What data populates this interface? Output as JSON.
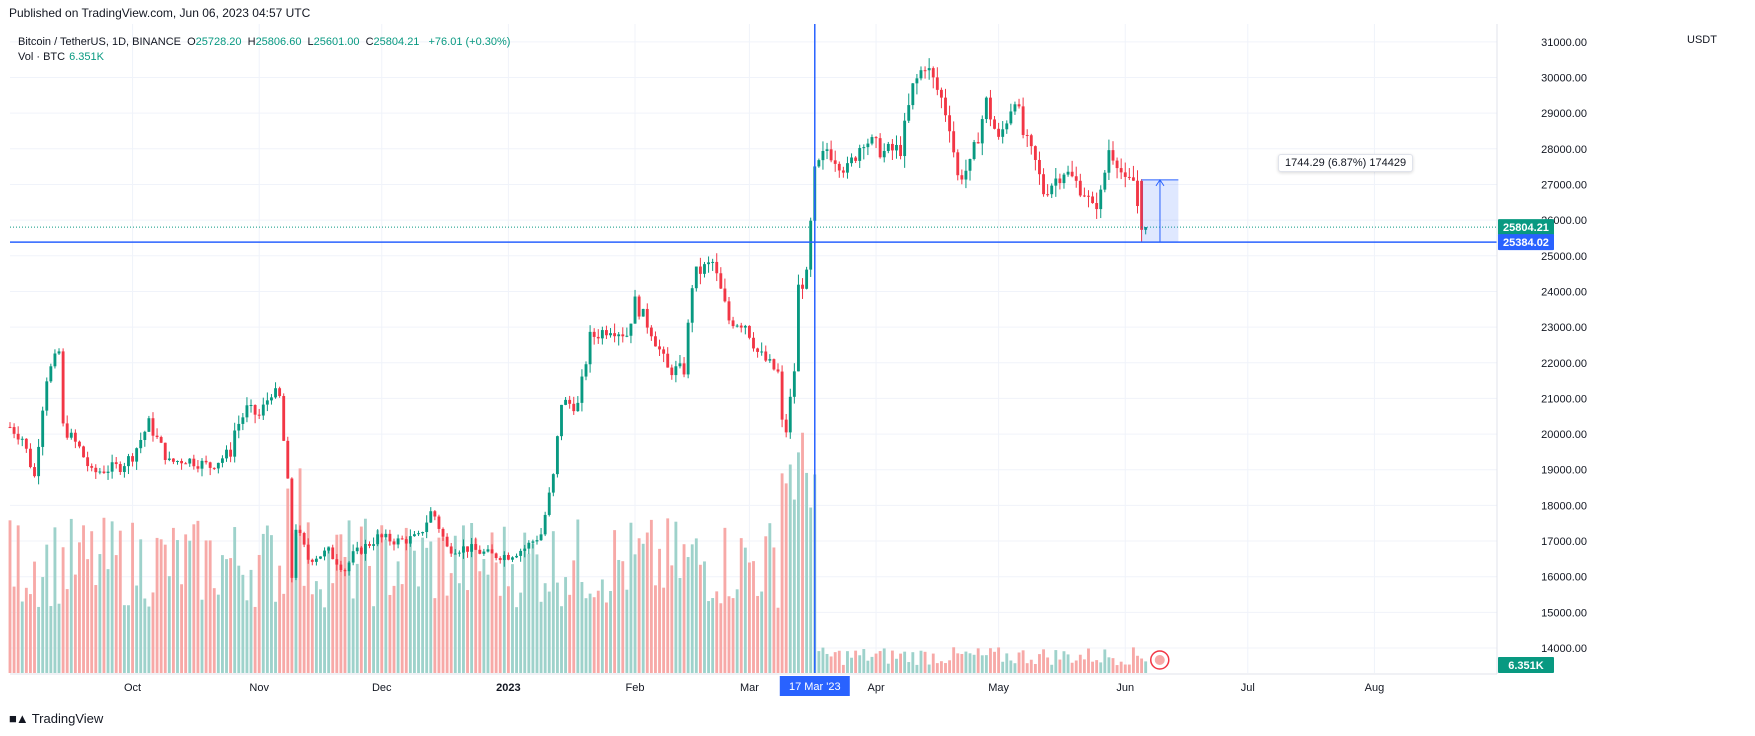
{
  "header": {
    "published": "Published on TradingView.com, Jun 06, 2023 04:57 UTC"
  },
  "legend": {
    "symbol": "Bitcoin / TetherUS, 1D, BINANCE",
    "open_label": "O",
    "open": "25728.20",
    "high_label": "H",
    "high": "25806.60",
    "low_label": "L",
    "low": "25601.00",
    "close_label": "C",
    "close": "25804.21",
    "change": "+76.01 (+0.30%)",
    "volume_label": "Vol · BTC",
    "volume": "6.351K"
  },
  "price_scale": {
    "currency": "USDT"
  },
  "markers": {
    "last_price": "25804.21",
    "crosshair_price": "25384.02",
    "crosshair_date": "17 Mar '23",
    "volume_badge": "6.351K"
  },
  "measure_tooltip": "1744.29 (6.87%) 174429",
  "footer": {
    "brand": "TradingView"
  },
  "colors": {
    "up": "#089981",
    "down": "#F23645",
    "up_vol": "#9ED2CB",
    "down_vol": "#F7A9A7",
    "crosshair": "#2962FF"
  },
  "chart_data": {
    "type": "candlestick",
    "title": "Bitcoin / TetherUS, 1D, BINANCE",
    "ylabel": "USDT",
    "ylim": [
      13300,
      31500
    ],
    "y_ticks": [
      14000,
      15000,
      16000,
      17000,
      18000,
      19000,
      20000,
      21000,
      22000,
      23000,
      24000,
      25000,
      26000,
      27000,
      28000,
      29000,
      30000,
      31000
    ],
    "y_tick_labels": [
      "14000.00",
      "15000.00",
      "16000.00",
      "17000.00",
      "18000.00",
      "19000.00",
      "20000.00",
      "21000.00",
      "22000.00",
      "23000.00",
      "24000.00",
      "25000.00",
      "26000.00",
      "27000.00",
      "28000.00",
      "29000.00",
      "30000.00",
      "31000.00"
    ],
    "x_labels": [
      "Oct",
      "Nov",
      "Dec",
      "2023",
      "Feb",
      "Mar",
      "Apr",
      "May",
      "Jun",
      "Jul",
      "Aug"
    ],
    "x_label_dates": [
      "2022-10-01",
      "2022-11-01",
      "2022-12-01",
      "2023-01-01",
      "2023-02-01",
      "2023-03-01",
      "2023-04-01",
      "2023-05-01",
      "2023-06-01",
      "2023-07-01",
      "2023-08-01"
    ],
    "x_range": [
      "2022-09-01",
      "2023-08-31"
    ],
    "series_keys": [
      "open",
      "high",
      "low",
      "close"
    ],
    "price_anchors": [
      [
        "2022-09-01",
        20200
      ],
      [
        "2022-09-04",
        19900
      ],
      [
        "2022-09-07",
        18800
      ],
      [
        "2022-09-09",
        20800
      ],
      [
        "2022-09-10",
        21600
      ],
      [
        "2022-09-13",
        22300
      ],
      [
        "2022-09-14",
        20200
      ],
      [
        "2022-09-18",
        19600
      ],
      [
        "2022-09-21",
        18900
      ],
      [
        "2022-09-24",
        19000
      ],
      [
        "2022-09-28",
        19100
      ],
      [
        "2022-10-01",
        19400
      ],
      [
        "2022-10-05",
        20300
      ],
      [
        "2022-10-10",
        19200
      ],
      [
        "2022-10-14",
        19300
      ],
      [
        "2022-10-20",
        19100
      ],
      [
        "2022-10-25",
        19500
      ],
      [
        "2022-10-26",
        20100
      ],
      [
        "2022-10-29",
        20700
      ],
      [
        "2022-11-01",
        20500
      ],
      [
        "2022-11-04",
        21200
      ],
      [
        "2022-11-06",
        21000
      ],
      [
        "2022-11-08",
        18600
      ],
      [
        "2022-11-09",
        16000
      ],
      [
        "2022-11-10",
        17400
      ],
      [
        "2022-11-13",
        16500
      ],
      [
        "2022-11-18",
        16700
      ],
      [
        "2022-11-22",
        16200
      ],
      [
        "2022-11-24",
        16600
      ],
      [
        "2022-11-30",
        17100
      ],
      [
        "2022-12-05",
        17000
      ],
      [
        "2022-12-10",
        17100
      ],
      [
        "2022-12-13",
        17800
      ],
      [
        "2022-12-14",
        17700
      ],
      [
        "2022-12-17",
        16800
      ],
      [
        "2022-12-22",
        16800
      ],
      [
        "2022-12-28",
        16600
      ],
      [
        "2023-01-01",
        16600
      ],
      [
        "2023-01-05",
        16800
      ],
      [
        "2023-01-09",
        17200
      ],
      [
        "2023-01-12",
        18800
      ],
      [
        "2023-01-14",
        20900
      ],
      [
        "2023-01-18",
        20800
      ],
      [
        "2023-01-21",
        22700
      ],
      [
        "2023-01-26",
        23000
      ],
      [
        "2023-01-30",
        22800
      ],
      [
        "2023-02-01",
        23700
      ],
      [
        "2023-02-05",
        22900
      ],
      [
        "2023-02-09",
        21800
      ],
      [
        "2023-02-13",
        21800
      ],
      [
        "2023-02-15",
        24200
      ],
      [
        "2023-02-16",
        24500
      ],
      [
        "2023-02-20",
        24800
      ],
      [
        "2023-02-24",
        23200
      ],
      [
        "2023-02-28",
        23100
      ],
      [
        "2023-03-03",
        22300
      ],
      [
        "2023-03-08",
        21700
      ],
      [
        "2023-03-09",
        20300
      ],
      [
        "2023-03-10",
        20100
      ],
      [
        "2023-03-12",
        21800
      ],
      [
        "2023-03-13",
        24100
      ],
      [
        "2023-03-15",
        24400
      ],
      [
        "2023-03-17",
        27300
      ],
      [
        "2023-03-20",
        28000
      ],
      [
        "2023-03-25",
        27400
      ],
      [
        "2023-03-29",
        28300
      ],
      [
        "2023-04-03",
        27900
      ],
      [
        "2023-04-07",
        28000
      ],
      [
        "2023-04-10",
        29700
      ],
      [
        "2023-04-13",
        30400
      ],
      [
        "2023-04-17",
        29400
      ],
      [
        "2023-04-19",
        28700
      ],
      [
        "2023-04-21",
        27200
      ],
      [
        "2023-04-24",
        27500
      ],
      [
        "2023-04-26",
        28400
      ],
      [
        "2023-04-28",
        29300
      ],
      [
        "2023-05-01",
        28200
      ],
      [
        "2023-05-05",
        29500
      ],
      [
        "2023-05-07",
        28400
      ],
      [
        "2023-05-10",
        27600
      ],
      [
        "2023-05-12",
        26800
      ],
      [
        "2023-05-17",
        27400
      ],
      [
        "2023-05-22",
        26800
      ],
      [
        "2023-05-24",
        26300
      ],
      [
        "2023-05-26",
        26700
      ],
      [
        "2023-05-28",
        28000
      ],
      [
        "2023-05-30",
        27700
      ],
      [
        "2023-06-01",
        27000
      ],
      [
        "2023-06-03",
        27100
      ],
      [
        "2023-06-05",
        25730
      ],
      [
        "2023-06-06",
        25804
      ]
    ],
    "volume_ylim": [
      0,
      100000
    ],
    "measurement": {
      "from_date": "2023-06-05",
      "to_date": "2023-06-14",
      "from_price": 25384,
      "to_price": 27128,
      "change": 1744.29,
      "percent": 6.87
    },
    "crosshair": {
      "date": "2023-03-17",
      "price": 25384.02
    },
    "last_price": 25804.21,
    "grid": true,
    "legend": "top-left"
  }
}
